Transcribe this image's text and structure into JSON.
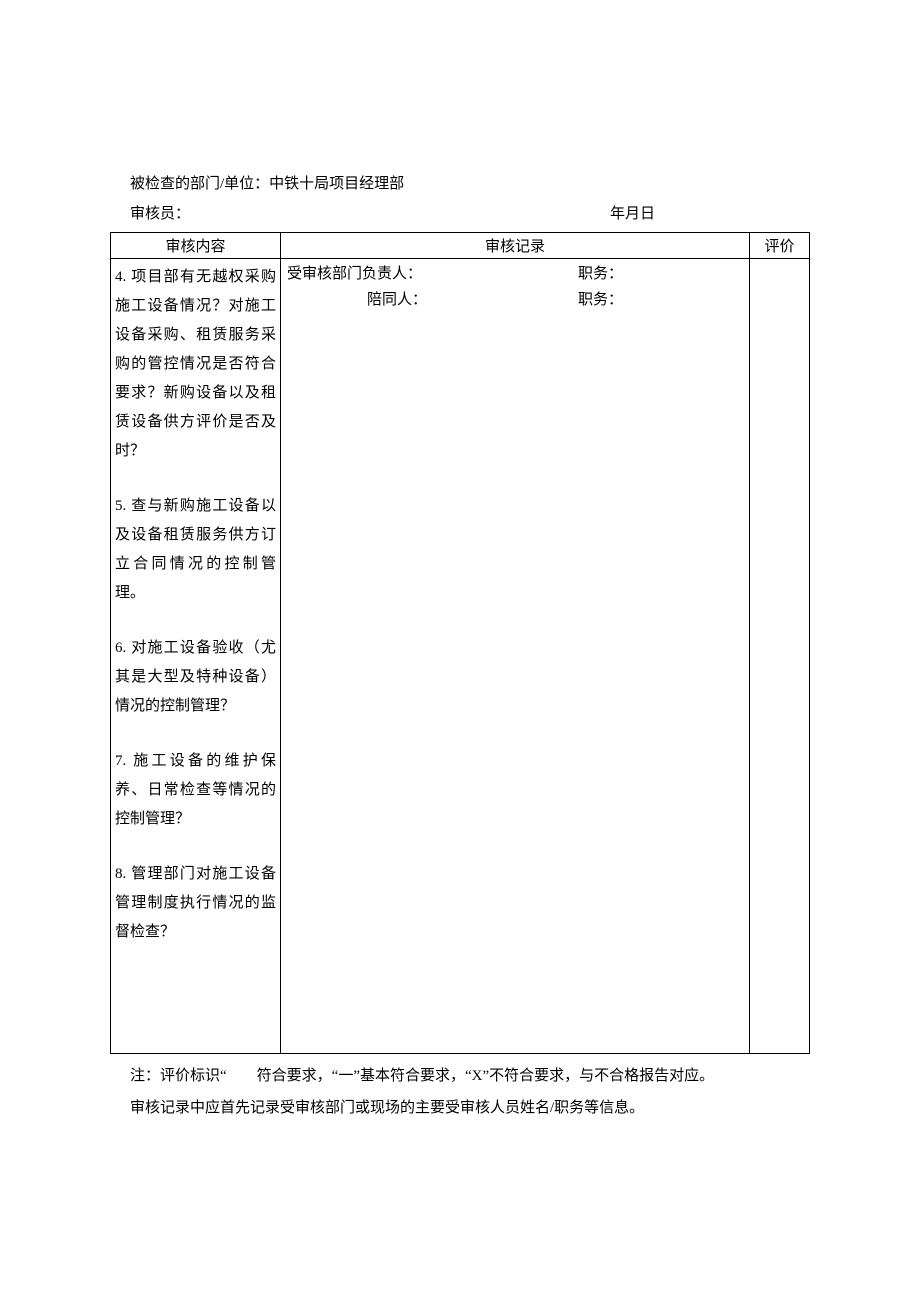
{
  "meta": {
    "department_line": "被检查的部门/单位：中铁十局项目经理部",
    "auditor_label": "审核员：",
    "date_label": "年月日"
  },
  "table": {
    "headers": {
      "content": "审核内容",
      "record": "审核记录",
      "eval": "评价"
    },
    "record_labels": {
      "responsible": "受审核部门负责人：",
      "accompany": "陪同人：",
      "position": "职务："
    },
    "items": [
      "4. 项目部有无越权采购施工设备情况？对施工设备采购、租赁服务采购的管控情况是否符合要求？新购设备以及租赁设备供方评价是否及时？",
      "5. 查与新购施工设备以及设备租赁服务供方订立合同情况的控制管理。",
      "6. 对施工设备验收（尤其是大型及特种设备）情况的控制管理？",
      "7. 施工设备的维护保养、日常检查等情况的控制管理？",
      "8. 管理部门对施工设备管理制度执行情况的监督检查？"
    ]
  },
  "notes": {
    "line1": "注：评价标识“　　符合要求，“一”基本符合要求，“X”不符合要求，与不合格报告对应。",
    "line2": "审核记录中应首先记录受审核部门或现场的主要受审核人员姓名/职务等信息。"
  },
  "colors": {
    "text": "#000000",
    "bg": "#ffffff",
    "border": "#000000"
  }
}
